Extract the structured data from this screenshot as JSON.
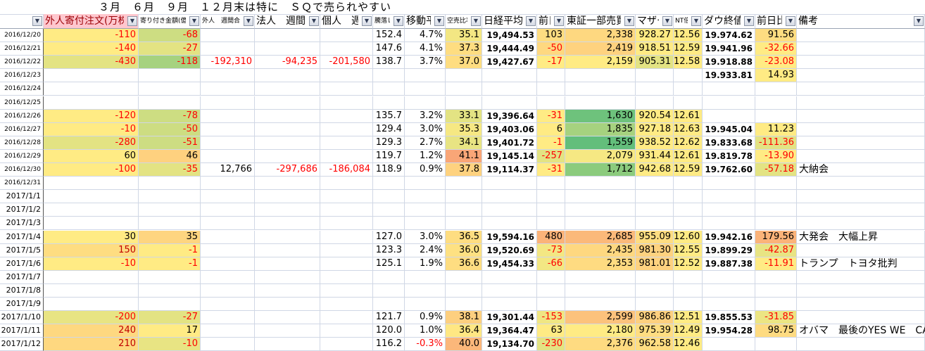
{
  "title_row": {
    "note": "３月　６月　９月　１２月末は特に　ＳＱで売られやすい"
  },
  "headers": [
    "",
    "外人寄付注文(万株)",
    "寄り付き金額(億)",
    "外人　週間合計",
    "法人　週間",
    "個人　週間",
    "騰落レシオ",
    "移動平均",
    "空売比率",
    "日経平均終値",
    "前日比",
    "東証一部売買代金",
    "マザーズ",
    "NT倍率",
    "ダウ終値",
    "前日比",
    "備考"
  ],
  "header_colors": {
    "highlight_bg": "#ffc7ce",
    "highlight_fg": "#9c0006"
  },
  "colors": {
    "negative": "#ff0000",
    "dark_red": "#c00000",
    "grid": "#d0d7e5"
  },
  "rows": [
    {
      "date": "2016/12/20",
      "c": [
        {
          "v": "-110",
          "bg": "#ffeb84"
        },
        {
          "v": "-68",
          "bg": "#cddd82"
        },
        {},
        {},
        {},
        {
          "v": "152.4"
        },
        {
          "v": "4.7%"
        },
        {
          "v": "35.1",
          "bg": "#f3e783"
        },
        {
          "v": "19,494.53"
        },
        {
          "v": "103",
          "bg": "#fedd81"
        },
        {
          "v": "2,338",
          "bg": "#fed880"
        },
        {
          "v": "928.27",
          "bg": "#ffeb84"
        },
        {
          "v": "12.56",
          "bg": "#ffeb84"
        },
        {
          "v": "19.974.62"
        },
        {
          "v": "91.56",
          "bg": "#fedd81"
        },
        {}
      ]
    },
    {
      "date": "2016/12/21",
      "c": [
        {
          "v": "-140",
          "bg": "#ffeb84"
        },
        {
          "v": "-27",
          "bg": "#e3e383"
        },
        {},
        {},
        {},
        {
          "v": "147.6"
        },
        {
          "v": "4.1%"
        },
        {
          "v": "37.3",
          "bg": "#fedd81"
        },
        {
          "v": "19,444.49"
        },
        {
          "v": "-50",
          "bg": "#fed880"
        },
        {
          "v": "2,419",
          "bg": "#fed27f"
        },
        {
          "v": "918.51",
          "bg": "#ffeb84"
        },
        {
          "v": "12.59",
          "bg": "#ffeb84"
        },
        {
          "v": "19.941.96"
        },
        {
          "v": "-32.66",
          "bg": "#ffeb84"
        },
        {}
      ]
    },
    {
      "date": "2016/12/22",
      "c": [
        {
          "v": "-430",
          "bg": "#e3e383"
        },
        {
          "v": "-118",
          "bg": "#a6d27f"
        },
        {
          "v": "-192,310"
        },
        {
          "v": "-94,235"
        },
        {
          "v": "-201,580"
        },
        {
          "v": "138.7"
        },
        {
          "v": "3.7%"
        },
        {
          "v": "37.0",
          "bg": "#fedd81"
        },
        {
          "v": "19,427.67"
        },
        {
          "v": "-17",
          "bg": "#ffeb84"
        },
        {
          "v": "2,159",
          "bg": "#ffeb84"
        },
        {
          "v": "905.31",
          "bg": "#e3e383"
        },
        {
          "v": "12.58",
          "bg": "#ffeb84"
        },
        {
          "v": "19.918.88"
        },
        {
          "v": "-23.08",
          "bg": "#ffeb84"
        },
        {}
      ]
    },
    {
      "date": "2016/12/23",
      "c": [
        {},
        {},
        {},
        {},
        {},
        {},
        {},
        {},
        {},
        {},
        {},
        {},
        {},
        {
          "v": "19.933.81"
        },
        {
          "v": "14.93",
          "bg": "#ffeb84"
        },
        {}
      ]
    },
    {
      "date": "2016/12/24",
      "c": []
    },
    {
      "date": "2016/12/25",
      "c": []
    },
    {
      "date": "2016/12/26",
      "c": [
        {
          "v": "-120",
          "bg": "#ffeb84"
        },
        {
          "v": "-78",
          "bg": "#cddd82"
        },
        {},
        {},
        {},
        {
          "v": "135.7"
        },
        {
          "v": "3.2%"
        },
        {
          "v": "33.1",
          "bg": "#e3e383"
        },
        {
          "v": "19,396.64"
        },
        {
          "v": "-31",
          "bg": "#ffeb84"
        },
        {
          "v": "1,630",
          "bg": "#6ec27c"
        },
        {
          "v": "920.54",
          "bg": "#ffeb84"
        },
        {
          "v": "12.61",
          "bg": "#ffeb84"
        },
        {},
        {},
        {}
      ]
    },
    {
      "date": "2016/12/27",
      "c": [
        {
          "v": "-10",
          "bg": "#ffeb84"
        },
        {
          "v": "-50",
          "bg": "#cddd82"
        },
        {},
        {},
        {},
        {
          "v": "129.4"
        },
        {
          "v": "3.0%"
        },
        {
          "v": "35.3",
          "bg": "#f6e883"
        },
        {
          "v": "19,403.06"
        },
        {
          "v": "6",
          "bg": "#ffeb84"
        },
        {
          "v": "1,835",
          "bg": "#a6d27f"
        },
        {
          "v": "927.18",
          "bg": "#ffeb84"
        },
        {
          "v": "12.63",
          "bg": "#ffeb84"
        },
        {
          "v": "19.945.04"
        },
        {
          "v": "11.23",
          "bg": "#ffeb84"
        },
        {}
      ]
    },
    {
      "date": "2016/12/28",
      "c": [
        {
          "v": "-280",
          "bg": "#e3e383"
        },
        {
          "v": "-51",
          "bg": "#cddd82"
        },
        {},
        {},
        {},
        {
          "v": "129.3"
        },
        {
          "v": "2.7%"
        },
        {
          "v": "34.1",
          "bg": "#e8e483"
        },
        {
          "v": "19,401.72"
        },
        {
          "v": "-1",
          "bg": "#ffeb84"
        },
        {
          "v": "1,559",
          "bg": "#63be7b"
        },
        {
          "v": "938.52",
          "bg": "#ffeb84"
        },
        {
          "v": "12.62",
          "bg": "#ffeb84"
        },
        {
          "v": "19.833.68"
        },
        {
          "v": "-111.36",
          "bg": "#e3e383"
        },
        {}
      ]
    },
    {
      "date": "2016/12/29",
      "c": [
        {
          "v": "60",
          "bg": "#ffeb84"
        },
        {
          "v": "46",
          "bg": "#fed17f"
        },
        {},
        {},
        {},
        {
          "v": "119.7"
        },
        {
          "v": "1.2%"
        },
        {
          "v": "41.1",
          "bg": "#f9a677"
        },
        {
          "v": "19,145.14"
        },
        {
          "v": "-257",
          "bg": "#e3e383"
        },
        {
          "v": "2,079",
          "bg": "#f6e883"
        },
        {
          "v": "931.44",
          "bg": "#ffeb84"
        },
        {
          "v": "12.61",
          "bg": "#ffeb84"
        },
        {
          "v": "19.819.78"
        },
        {
          "v": "-13.90",
          "bg": "#ffeb84"
        },
        {}
      ]
    },
    {
      "date": "2016/12/30",
      "c": [
        {
          "v": "-100",
          "bg": "#ffeb84"
        },
        {
          "v": "-35",
          "bg": "#e3e383"
        },
        {
          "v": "12,766"
        },
        {
          "v": "-297,686"
        },
        {
          "v": "-186,084"
        },
        {
          "v": "118.9"
        },
        {
          "v": "0.9%"
        },
        {
          "v": "37.8",
          "bg": "#fed27f"
        },
        {
          "v": "19,114.37"
        },
        {
          "v": "-31",
          "bg": "#ffeb84"
        },
        {
          "v": "1,712",
          "bg": "#8bcb7d"
        },
        {
          "v": "942.68",
          "bg": "#ffeb84"
        },
        {
          "v": "12.59",
          "bg": "#ffeb84"
        },
        {
          "v": "19.762.60"
        },
        {
          "v": "-57.18",
          "bg": "#e3e383"
        },
        {
          "v": "大納会"
        }
      ]
    },
    {
      "date": "2016/12/31",
      "c": []
    },
    {
      "date": "2017/1/1",
      "c": []
    },
    {
      "date": "2017/1/2",
      "c": []
    },
    {
      "date": "2017/1/3",
      "c": []
    },
    {
      "date": "2017/1/4",
      "c": [
        {
          "v": "30",
          "bg": "#ffeb84"
        },
        {
          "v": "35",
          "bg": "#fed580"
        },
        {},
        {},
        {},
        {
          "v": "127.0"
        },
        {
          "v": "3.0%"
        },
        {
          "v": "36.5",
          "bg": "#fedd81"
        },
        {
          "v": "19,594.16"
        },
        {
          "v": "480",
          "bg": "#fbb379"
        },
        {
          "v": "2,685",
          "bg": "#fbb97a"
        },
        {
          "v": "955.09",
          "bg": "#fedd81"
        },
        {
          "v": "12.60",
          "bg": "#ffeb84"
        },
        {
          "v": "19.942.16"
        },
        {
          "v": "179.56",
          "bg": "#fbb379"
        },
        {
          "v": "大発会　大幅上昇"
        }
      ]
    },
    {
      "date": "2017/1/5",
      "c": [
        {
          "v": "150",
          "bg": "#fedd81",
          "fg": "#c00000"
        },
        {
          "v": "-1",
          "bg": "#ffeb84"
        },
        {},
        {},
        {},
        {
          "v": "123.3"
        },
        {
          "v": "2.4%"
        },
        {
          "v": "36.0",
          "bg": "#fee182"
        },
        {
          "v": "19,520.69"
        },
        {
          "v": "-73",
          "bg": "#f3e783"
        },
        {
          "v": "2,435",
          "bg": "#fed880"
        },
        {
          "v": "981.30",
          "bg": "#fed27f"
        },
        {
          "v": "12.55",
          "bg": "#ffeb84"
        },
        {
          "v": "19.899.29"
        },
        {
          "v": "-42.87",
          "bg": "#e8e483"
        },
        {}
      ]
    },
    {
      "date": "2017/1/6",
      "c": [
        {
          "v": "-10",
          "bg": "#ffeb84"
        },
        {
          "v": "-1",
          "bg": "#ffeb84"
        },
        {},
        {},
        {},
        {
          "v": "125.1"
        },
        {
          "v": "1.9%"
        },
        {
          "v": "36.6",
          "bg": "#fedd81"
        },
        {
          "v": "19,454.33"
        },
        {
          "v": "-66",
          "bg": "#f3e783"
        },
        {
          "v": "2,353",
          "bg": "#fedb81"
        },
        {
          "v": "981.01",
          "bg": "#fed27f"
        },
        {
          "v": "12.52",
          "bg": "#ffeb84"
        },
        {
          "v": "19.887.38"
        },
        {
          "v": "-11.91",
          "bg": "#ffeb84"
        },
        {
          "v": "トランプ　トヨタ批判"
        }
      ]
    },
    {
      "date": "2017/1/7",
      "c": []
    },
    {
      "date": "2017/1/8",
      "c": []
    },
    {
      "date": "2017/1/9",
      "c": []
    },
    {
      "date": "2017/1/10",
      "c": [
        {
          "v": "-200",
          "bg": "#e8e483"
        },
        {
          "v": "-27",
          "bg": "#e3e383"
        },
        {},
        {},
        {},
        {
          "v": "121.7"
        },
        {
          "v": "0.9%"
        },
        {
          "v": "38.1",
          "bg": "#fdcf7f"
        },
        {
          "v": "19,301.44"
        },
        {
          "v": "-153",
          "bg": "#f0e683"
        },
        {
          "v": "2,599",
          "bg": "#fcc27c"
        },
        {
          "v": "986.86",
          "bg": "#fdd07f"
        },
        {
          "v": "12.51",
          "bg": "#ffeb84"
        },
        {
          "v": "19.855.53"
        },
        {
          "v": "-31.85",
          "bg": "#ece583"
        },
        {}
      ]
    },
    {
      "date": "2017/1/11",
      "c": [
        {
          "v": "240",
          "bg": "#fed880",
          "fg": "#c00000"
        },
        {
          "v": "17",
          "bg": "#ffeb84"
        },
        {},
        {},
        {},
        {
          "v": "120.0"
        },
        {
          "v": "1.0%"
        },
        {
          "v": "36.4",
          "bg": "#ffe783"
        },
        {
          "v": "19,364.47"
        },
        {
          "v": "63",
          "bg": "#ffeb84"
        },
        {
          "v": "2,180",
          "bg": "#ffeb84"
        },
        {
          "v": "975.39",
          "bg": "#fedd81"
        },
        {
          "v": "12.49",
          "bg": "#ffeb84"
        },
        {
          "v": "19.954.28"
        },
        {
          "v": "98.75",
          "bg": "#fedb81"
        },
        {
          "v": "オバマ　最後のYES WE　CAN"
        }
      ]
    },
    {
      "date": "2017/1/12",
      "c": [
        {
          "v": "210",
          "bg": "#fed880",
          "fg": "#c00000"
        },
        {
          "v": "-10",
          "bg": "#e8e483"
        },
        {},
        {},
        {},
        {
          "v": "116.2"
        },
        {
          "v": "-0.3%"
        },
        {
          "v": "40.0",
          "bg": "#fbb77a"
        },
        {
          "v": "19,134.70"
        },
        {
          "v": "-230",
          "bg": "#e3e383"
        },
        {
          "v": "2,376",
          "bg": "#fedb81"
        },
        {
          "v": "962.58",
          "bg": "#fedd81"
        },
        {
          "v": "12.46",
          "bg": "#ffeb84"
        },
        {},
        {},
        {}
      ]
    }
  ]
}
